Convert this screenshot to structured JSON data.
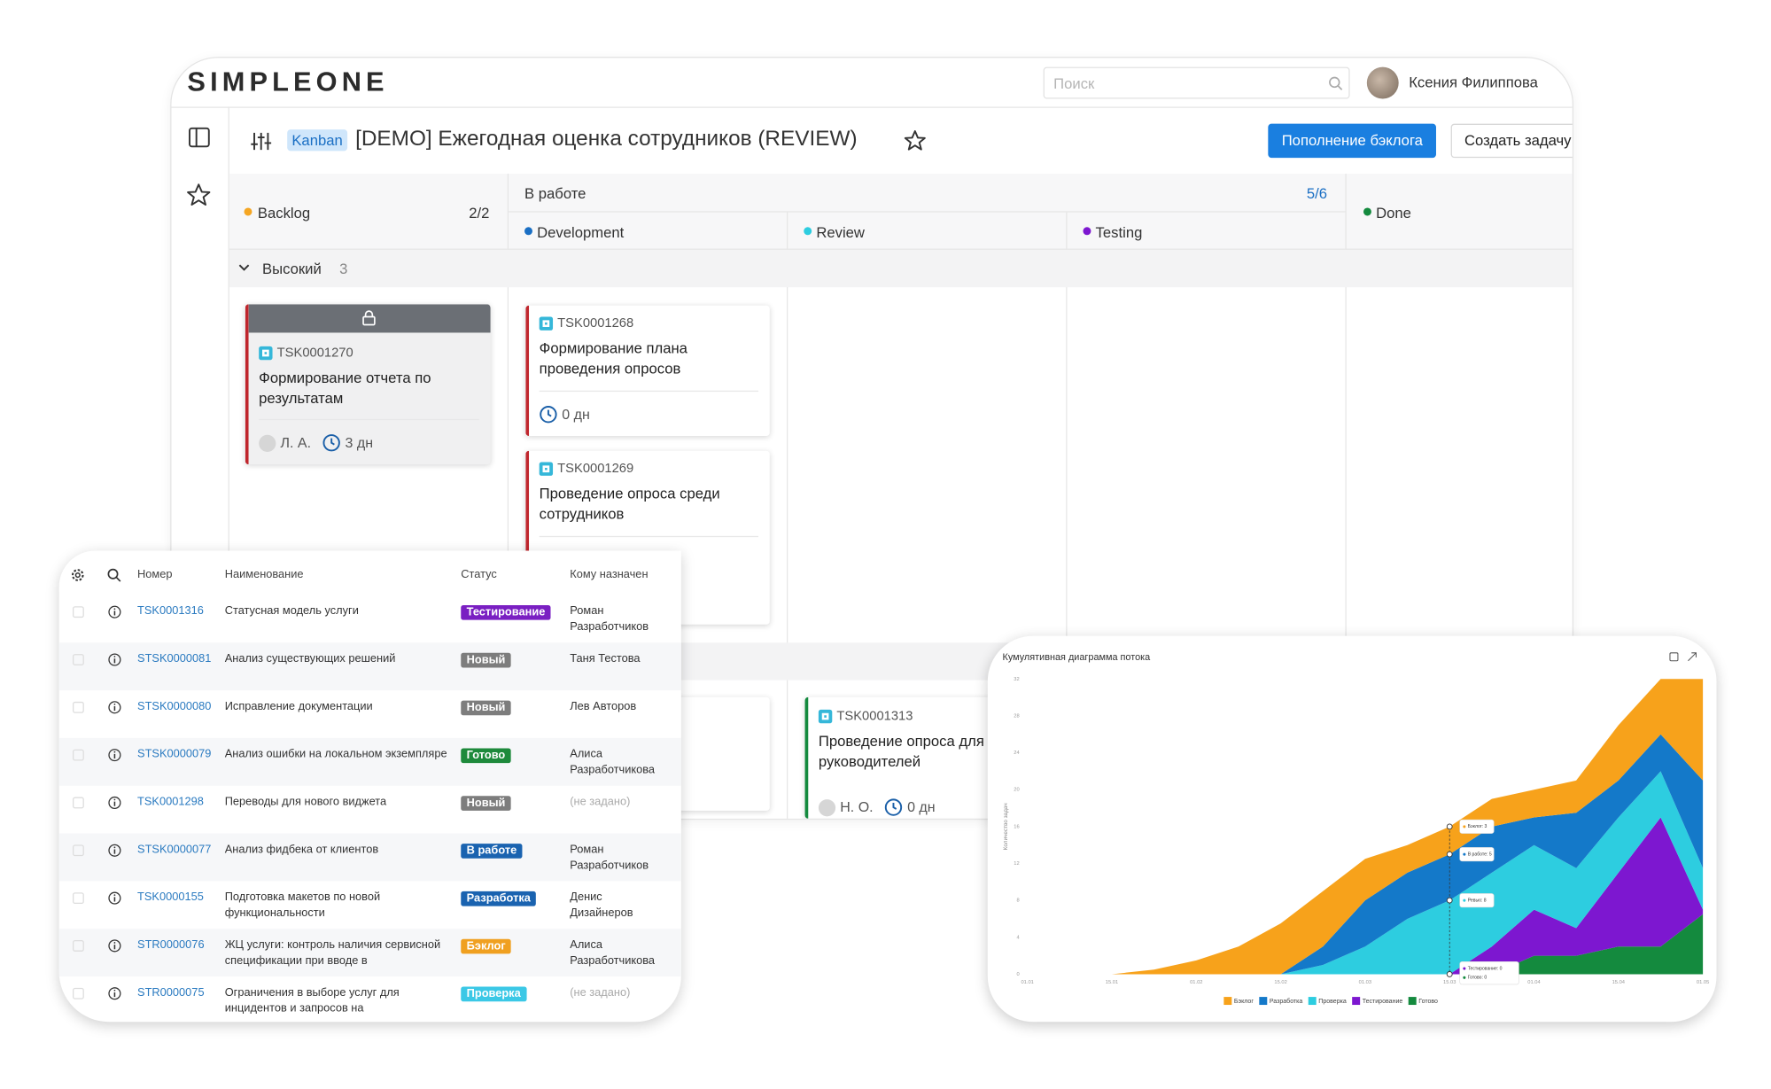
{
  "header": {
    "logo": "SIMPLEONE",
    "search_placeholder": "Поиск",
    "user": "Ксения Филиппова"
  },
  "toolbar": {
    "badge": "Kanban",
    "title": "[DEMO] Ежегодная оценка сотрудников (REVIEW)",
    "buttons": [
      "Пополнение бэклога",
      "Создать задачу"
    ]
  },
  "board": {
    "backlog": {
      "name": "Backlog",
      "limit": "2/2"
    },
    "in_progress": {
      "name": "В работе",
      "limit": "5/6",
      "columns": [
        "Development",
        "Review",
        "Testing"
      ]
    },
    "done": {
      "name": "Done"
    },
    "swimlane": {
      "name": "Высокий",
      "count": 3
    },
    "cards": [
      {
        "number": "TSK0001270",
        "title": "Формирование отчета по результатам",
        "assignee": "Л. А.",
        "age": "3 дн"
      },
      {
        "number": "TSK0001268",
        "title": "Формирование плана проведения опросов",
        "age": "0 дн"
      },
      {
        "number": "TSK0001269",
        "title": "Проведение опроса среди сотрудников"
      },
      {
        "number": "TSK0001313",
        "title": "Проведение опроса для руководителей",
        "assignee": "Н. О.",
        "age": "0 дн"
      }
    ]
  },
  "table": {
    "columns": [
      "Номер",
      "Наименование",
      "Статус",
      "Кому назначен"
    ],
    "rows": [
      {
        "number": "TSK0001316",
        "name": "Статусная модель услуги",
        "status": "Тестирование",
        "status_color": "#7a1fc2",
        "assignee": "Роман Разработчиков"
      },
      {
        "number": "STSK0000081",
        "name": "Анализ существующих решений",
        "status": "Новый",
        "status_color": "#7d7d7d",
        "assignee": "Таня Тестова"
      },
      {
        "number": "STSK0000080",
        "name": "Исправление документации",
        "status": "Новый",
        "status_color": "#7d7d7d",
        "assignee": "Лев Авторов"
      },
      {
        "number": "STSK0000079",
        "name": "Анализ ошибки на локальном экземпляре",
        "status": "Готово",
        "status_color": "#1e8a3c",
        "assignee": "Алиса Разработчикова"
      },
      {
        "number": "TSK0001298",
        "name": "Переводы для нового виджета",
        "status": "Новый",
        "status_color": "#7d7d7d",
        "assignee": "(не задано)"
      },
      {
        "number": "STSK0000077",
        "name": "Анализ фидбека от клиентов",
        "status": "В работе",
        "status_color": "#1a63b0",
        "assignee": "Роман Разработчиков"
      },
      {
        "number": "TSK0000155",
        "name": "Подготовка макетов по новой функциональности",
        "status": "Разработка",
        "status_color": "#1a63b0",
        "assignee": "Денис Дизайнеров"
      },
      {
        "number": "STR0000076",
        "name": "ЖЦ услуги: контроль наличия сервисной спецификации при вводе в",
        "status": "Бэклог",
        "status_color": "#f0a020",
        "assignee": "Алиса Разработчикова"
      },
      {
        "number": "STR0000075",
        "name": "Ограничения в выборе услуг для инцидентов и запросов на",
        "status": "Проверка",
        "status_color": "#3bc8e6",
        "assignee": "(не задано)"
      }
    ]
  },
  "chart_data": {
    "type": "area",
    "stacked": true,
    "title": "Кумулятивная диаграмма потока",
    "y_label": "Количество задач",
    "categories": [
      "01.01",
      null,
      "15.01",
      null,
      "01.02",
      null,
      "15.02",
      null,
      "01.03",
      null,
      "15.03",
      null,
      "01.04",
      null,
      "15.04",
      null,
      "01.05"
    ],
    "series": [
      {
        "name": "Бэклог",
        "color": "#f7a21b",
        "values": [
          0,
          0,
          0,
          0.5,
          1.5,
          3,
          5.5,
          6,
          4.5,
          3,
          3,
          3,
          3,
          3.5,
          6,
          6,
          11
        ]
      },
      {
        "name": "Разработка",
        "color": "#1479c9",
        "values": [
          0,
          0,
          0,
          0,
          0,
          0,
          0,
          2,
          5,
          5,
          5,
          5,
          3,
          6,
          4,
          4,
          9.5
        ]
      },
      {
        "name": "Проверка",
        "color": "#2dcde0",
        "values": [
          0,
          0,
          0,
          0,
          0,
          0,
          0,
          1,
          3,
          6,
          8,
          8,
          7,
          6.5,
          6,
          5,
          4.5
        ]
      },
      {
        "name": "Тестирование",
        "color": "#7d17d0",
        "values": [
          0,
          0,
          0,
          0,
          0,
          0,
          0,
          0,
          0,
          0,
          0,
          3,
          5,
          3,
          8,
          14,
          0.5
        ]
      },
      {
        "name": "Готово",
        "color": "#148a3e",
        "values": [
          0,
          0,
          0,
          0,
          0,
          0,
          0,
          0,
          0,
          0,
          0,
          0,
          2,
          2,
          3,
          3,
          6.5
        ]
      }
    ],
    "ylim": [
      0,
      32
    ],
    "yticks": [
      0,
      4,
      8,
      12,
      16,
      20,
      24,
      28,
      32
    ],
    "tooltip": [
      "Бэклог: 3",
      "В работе: 5",
      "Ревью: 8",
      "Тестирование: 0",
      "Готово: 0"
    ]
  }
}
